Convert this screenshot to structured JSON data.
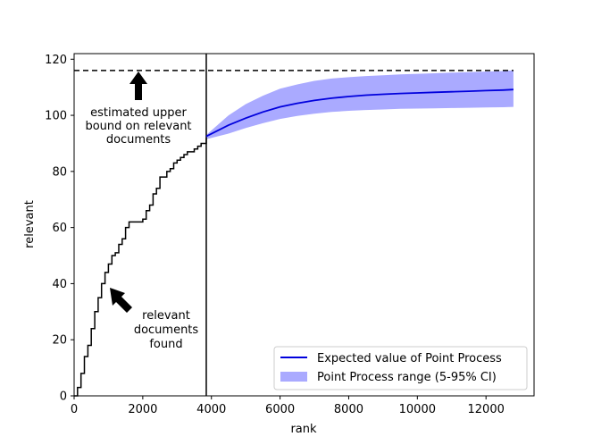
{
  "chart_data": {
    "type": "line",
    "xlabel": "rank",
    "ylabel": "relevant",
    "xlim": [
      0,
      13400
    ],
    "ylim": [
      0,
      122
    ],
    "xticks": [
      0,
      2000,
      4000,
      6000,
      8000,
      10000,
      12000
    ],
    "yticks": [
      0,
      20,
      40,
      60,
      80,
      100,
      120
    ],
    "grid": false,
    "legend_position": "bottom-right",
    "upper_bound": 116,
    "cutoff_rank": 3850,
    "found_curve": {
      "x": [
        0,
        100,
        200,
        300,
        400,
        500,
        600,
        700,
        800,
        900,
        1000,
        1100,
        1200,
        1300,
        1400,
        1500,
        1600,
        1700,
        1800,
        1900,
        2000,
        2100,
        2200,
        2300,
        2400,
        2500,
        2600,
        2700,
        2800,
        2900,
        3000,
        3100,
        3200,
        3300,
        3400,
        3500,
        3600,
        3700,
        3800,
        3850
      ],
      "y": [
        0,
        3,
        8,
        14,
        18,
        24,
        30,
        35,
        40,
        44,
        47,
        50,
        51,
        54,
        56,
        60,
        62,
        62,
        62,
        62,
        63,
        66,
        68,
        72,
        74,
        78,
        78,
        80,
        81,
        83,
        84,
        85,
        86,
        87,
        87,
        88,
        89,
        90,
        90,
        92
      ]
    },
    "series": [
      {
        "name": "Expected value of Point Process",
        "color": "#0000dd",
        "x": [
          3850,
          4500,
          5000,
          5500,
          6000,
          6500,
          7000,
          7500,
          8000,
          8500,
          9000,
          9500,
          10000,
          10500,
          11000,
          11500,
          12000,
          12500,
          12800
        ],
        "y": [
          92.5,
          96.5,
          99.0,
          101.2,
          103.0,
          104.3,
          105.3,
          106.1,
          106.7,
          107.2,
          107.5,
          107.8,
          108.0,
          108.2,
          108.4,
          108.6,
          108.8,
          109.0,
          109.2
        ]
      }
    ],
    "band": {
      "name": "Point Process range (5-95% CI)",
      "color": "#aaaaff",
      "x": [
        3850,
        4500,
        5000,
        5500,
        6000,
        6500,
        7000,
        7500,
        8000,
        8500,
        9000,
        9500,
        10000,
        10500,
        11000,
        11500,
        12000,
        12500,
        12800
      ],
      "low": [
        91.5,
        93.5,
        95.5,
        97.2,
        98.7,
        99.8,
        100.6,
        101.2,
        101.6,
        101.9,
        102.1,
        102.3,
        102.4,
        102.5,
        102.6,
        102.7,
        102.8,
        102.9,
        103.0
      ],
      "high": [
        93.0,
        100.0,
        104.0,
        107.0,
        109.5,
        111.0,
        112.3,
        113.1,
        113.6,
        114.0,
        114.3,
        114.6,
        114.8,
        115.0,
        115.2,
        115.4,
        115.6,
        115.8,
        116.0
      ]
    },
    "annotations": {
      "upper_bound_text": [
        "estimated upper",
        "bound on relevant",
        "documents"
      ],
      "found_text": [
        "relevant",
        "documents",
        "found"
      ]
    }
  }
}
